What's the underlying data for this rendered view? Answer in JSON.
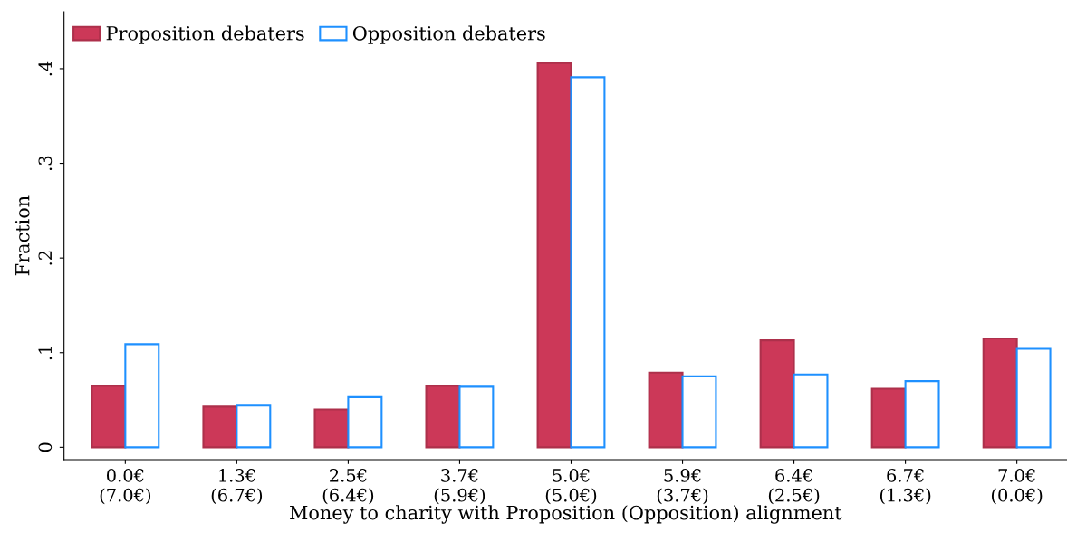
{
  "chart_data": {
    "type": "bar",
    "xlabel": "Money to charity with Proposition (Opposition) alignment",
    "ylabel": "Fraction",
    "categories": [
      "0.0€\n(7.0€)",
      "1.3€\n(6.7€)",
      "2.5€\n(6.4€)",
      "3.7€\n(5.9€)",
      "5.0€\n(5.0€)",
      "5.9€\n(3.7€)",
      "6.4€\n(2.5€)",
      "6.7€\n(1.3€)",
      "7.0€\n(0.0€)"
    ],
    "series": [
      {
        "name": "Proposition debaters",
        "color": "#cc3858",
        "values": [
          0.065,
          0.043,
          0.04,
          0.065,
          0.406,
          0.079,
          0.113,
          0.062,
          0.115
        ]
      },
      {
        "name": "Opposition debaters",
        "color": "#1e90ff",
        "values": [
          0.109,
          0.044,
          0.053,
          0.064,
          0.391,
          0.075,
          0.077,
          0.07,
          0.104
        ]
      }
    ],
    "ylim": [
      -0.013,
      0.46
    ],
    "yticks": [
      {
        "value": 0,
        "label": "0"
      },
      {
        "value": 0.1,
        "label": ".1"
      },
      {
        "value": 0.2,
        "label": ".2"
      },
      {
        "value": 0.3,
        "label": ".3"
      },
      {
        "value": 0.4,
        "label": ".4"
      }
    ],
    "grid": false,
    "legend": "top left"
  }
}
